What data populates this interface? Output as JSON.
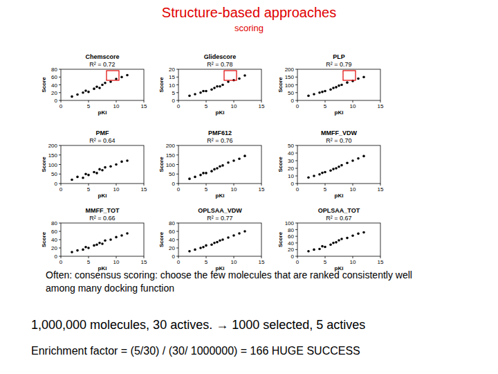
{
  "slide": {
    "title": "Structure-based approaches",
    "subtitle": "scoring",
    "note": [
      "Often: consensus scoring: choose the few molecules that are ranked consistently well",
      "among many docking function"
    ],
    "example": "1,000,000 molecules, 30 actives. → 1000 selected, 5 actives",
    "enrichment": "Enrichment factor = (5/30) / (30/ 1000000) = 166 HUGE SUCCESS"
  },
  "chart_data": [
    {
      "type": "scatter",
      "title": "Chemscore",
      "subtitle": "R² = 0.72",
      "x_label": "pKi",
      "y_label": "Score",
      "xlim": [
        0,
        15
      ],
      "xticks": [
        0,
        5,
        10,
        15
      ],
      "ylim": [
        0,
        80
      ],
      "yticks": [
        0,
        20,
        40,
        60,
        80
      ],
      "series": [
        {
          "color": "#000000",
          "marker": "circle",
          "x": [
            2,
            3,
            4,
            4.5,
            5,
            6,
            6.5,
            7,
            7.5,
            8,
            9,
            10,
            11,
            12
          ],
          "values": [
            10,
            15,
            20,
            25,
            22,
            30,
            35,
            32,
            40,
            45,
            48,
            55,
            60,
            65
          ]
        }
      ]
    },
    {
      "type": "scatter",
      "title": "Glidescore",
      "subtitle": "R² = 0.78",
      "x_label": "pKi",
      "y_label": "Score",
      "xlim": [
        0,
        15
      ],
      "xticks": [
        0,
        5,
        10,
        15
      ],
      "ylim": [
        0,
        20
      ],
      "yticks": [
        0,
        5,
        10,
        15,
        20
      ],
      "series": [
        {
          "color": "#000000",
          "marker": "circle",
          "x": [
            2,
            3,
            4,
            4.5,
            5,
            6,
            6.5,
            7,
            7.5,
            8,
            9,
            10,
            11,
            12
          ],
          "values": [
            3,
            4,
            5,
            6,
            6,
            7,
            8,
            9,
            9,
            10,
            12,
            13,
            14,
            16
          ]
        }
      ]
    },
    {
      "type": "scatter",
      "title": "PLP",
      "subtitle": "R² = 0.79",
      "x_label": "pKi",
      "y_label": "Score",
      "xlim": [
        0,
        15
      ],
      "xticks": [
        0,
        5,
        10,
        15
      ],
      "ylim": [
        0,
        200
      ],
      "yticks": [
        0,
        50,
        100,
        150,
        200
      ],
      "series": [
        {
          "color": "#000000",
          "marker": "circle",
          "x": [
            2,
            3,
            4,
            4.5,
            5,
            6,
            6.5,
            7,
            7.5,
            8,
            9,
            10,
            11,
            12
          ],
          "values": [
            30,
            40,
            50,
            55,
            60,
            70,
            80,
            85,
            95,
            100,
            115,
            125,
            140,
            150
          ]
        }
      ]
    },
    {
      "type": "scatter",
      "title": "PMF",
      "subtitle": "R² = 0.64",
      "x_label": "pKi",
      "y_label": "Score",
      "xlim": [
        0,
        15
      ],
      "xticks": [
        0,
        5,
        10,
        15
      ],
      "ylim": [
        0,
        200
      ],
      "yticks": [
        0,
        50,
        100,
        150,
        200
      ],
      "series": [
        {
          "color": "#000000",
          "marker": "circle",
          "x": [
            2,
            3,
            4,
            4.5,
            5,
            6,
            6.5,
            7,
            7.5,
            8,
            9,
            10,
            11,
            12
          ],
          "values": [
            20,
            35,
            30,
            50,
            45,
            60,
            55,
            75,
            70,
            85,
            90,
            100,
            115,
            120
          ]
        }
      ]
    },
    {
      "type": "scatter",
      "title": "PMF612",
      "subtitle": "R² = 0.76",
      "x_label": "pKi",
      "y_label": "Score",
      "xlim": [
        0,
        15
      ],
      "xticks": [
        0,
        5,
        10,
        15
      ],
      "ylim": [
        0,
        200
      ],
      "yticks": [
        0,
        50,
        100,
        150,
        200
      ],
      "series": [
        {
          "color": "#000000",
          "marker": "circle",
          "x": [
            2,
            3,
            4,
            4.5,
            5,
            6,
            6.5,
            7,
            7.5,
            8,
            9,
            10,
            11,
            12
          ],
          "values": [
            25,
            35,
            45,
            55,
            55,
            65,
            75,
            80,
            90,
            95,
            110,
            120,
            130,
            145
          ]
        }
      ]
    },
    {
      "type": "scatter",
      "title": "MMFF_VDW",
      "subtitle": "R² = 0.70",
      "x_label": "pKi",
      "y_label": "Score",
      "xlim": [
        0,
        15
      ],
      "xticks": [
        0,
        5,
        10,
        15
      ],
      "ylim": [
        0,
        50
      ],
      "yticks": [
        0,
        10,
        20,
        30,
        40,
        50
      ],
      "series": [
        {
          "color": "#000000",
          "marker": "circle",
          "x": [
            2,
            3,
            4,
            4.5,
            5,
            6,
            6.5,
            7,
            7.5,
            8,
            9,
            10,
            11,
            12
          ],
          "values": [
            8,
            10,
            12,
            14,
            15,
            17,
            19,
            20,
            22,
            24,
            27,
            30,
            33,
            36
          ]
        }
      ]
    },
    {
      "type": "scatter",
      "title": "MMFF_TOT",
      "subtitle": "R² = 0.66",
      "x_label": "pKi",
      "y_label": "Score",
      "xlim": [
        0,
        15
      ],
      "xticks": [
        0,
        5,
        10,
        15
      ],
      "ylim": [
        0,
        80
      ],
      "yticks": [
        0,
        20,
        40,
        60,
        80
      ],
      "series": [
        {
          "color": "#000000",
          "marker": "circle",
          "x": [
            2,
            3,
            4,
            4.5,
            5,
            6,
            6.5,
            7,
            7.5,
            8,
            9,
            10,
            11,
            12
          ],
          "values": [
            10,
            14,
            16,
            22,
            20,
            26,
            28,
            32,
            30,
            38,
            40,
            46,
            50,
            55
          ]
        }
      ]
    },
    {
      "type": "scatter",
      "title": "OPLSAA_VDW",
      "subtitle": "R² = 0.77",
      "x_label": "pKi",
      "y_label": "Score",
      "xlim": [
        0,
        15
      ],
      "xticks": [
        0,
        5,
        10,
        15
      ],
      "ylim": [
        0,
        80
      ],
      "yticks": [
        0,
        20,
        40,
        60,
        80
      ],
      "series": [
        {
          "color": "#000000",
          "marker": "circle",
          "x": [
            2,
            3,
            4,
            4.5,
            5,
            6,
            6.5,
            7,
            7.5,
            8,
            9,
            10,
            11,
            12
          ],
          "values": [
            12,
            16,
            20,
            22,
            26,
            28,
            32,
            34,
            38,
            40,
            45,
            50,
            55,
            60
          ]
        }
      ]
    },
    {
      "type": "scatter",
      "title": "OPLSAA_TOT",
      "subtitle": "R² = 0.67",
      "x_label": "pKi",
      "y_label": "Score",
      "xlim": [
        0,
        15
      ],
      "xticks": [
        0,
        5,
        10,
        15
      ],
      "ylim": [
        0,
        100
      ],
      "yticks": [
        0,
        20,
        40,
        60,
        80,
        100
      ],
      "series": [
        {
          "color": "#000000",
          "marker": "circle",
          "x": [
            2,
            3,
            4,
            4.5,
            5,
            6,
            6.5,
            7,
            7.5,
            8,
            9,
            10,
            11,
            12
          ],
          "values": [
            15,
            20,
            22,
            30,
            28,
            35,
            40,
            42,
            48,
            52,
            55,
            62,
            68,
            72
          ]
        }
      ]
    }
  ]
}
